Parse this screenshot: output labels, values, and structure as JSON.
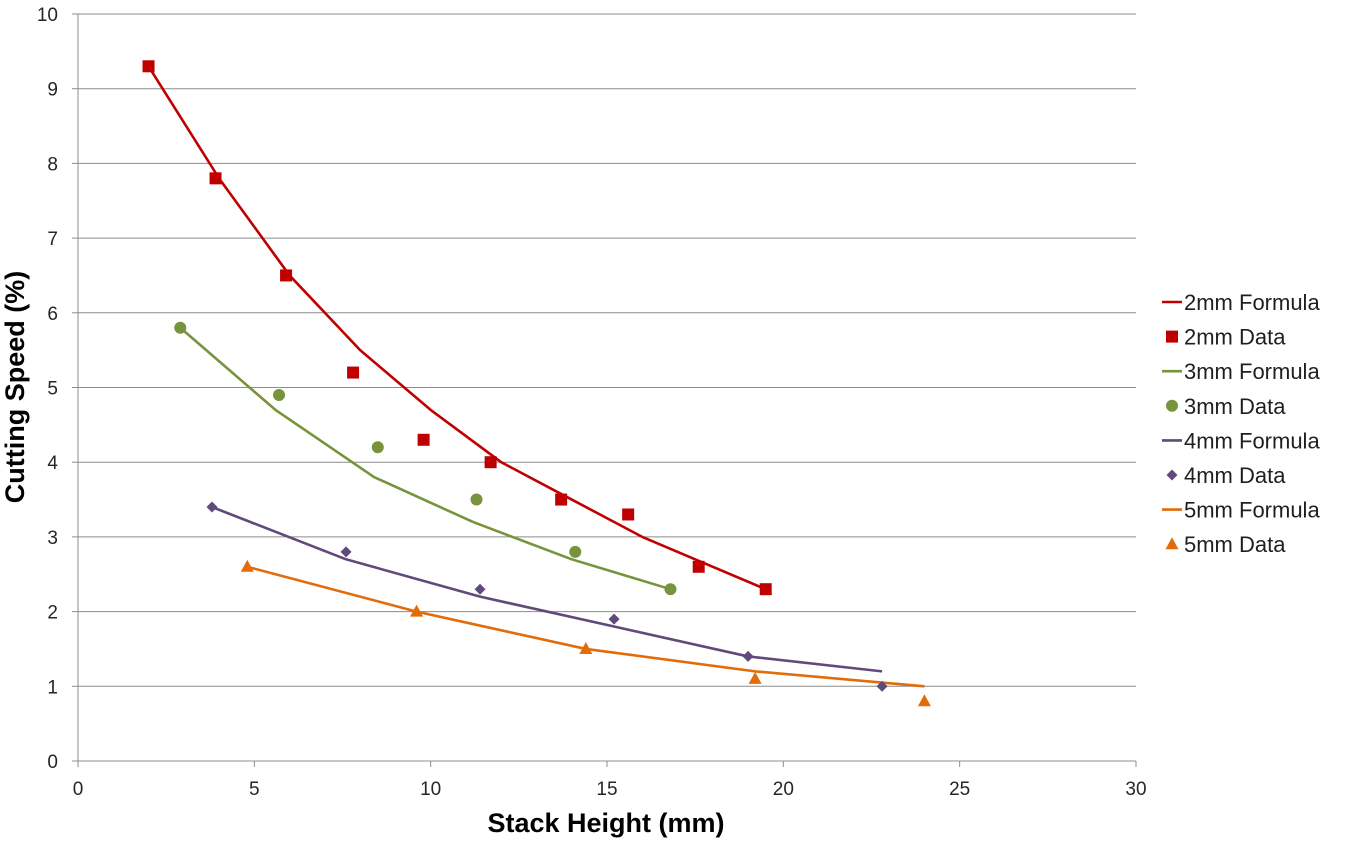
{
  "chart_data": {
    "type": "scatter",
    "xlabel": "Stack Height (mm)",
    "ylabel": "Cutting Speed (%)",
    "xlim": [
      0,
      30
    ],
    "ylim": [
      0,
      10
    ],
    "x_ticks": [
      "0",
      "5",
      "10",
      "15",
      "20",
      "25",
      "30"
    ],
    "y_ticks": [
      "0",
      "1",
      "2",
      "3",
      "4",
      "5",
      "6",
      "7",
      "8",
      "9",
      "10"
    ],
    "grid": "horizontal",
    "legend_position": "right",
    "series": [
      {
        "name": "2mm Formula",
        "kind": "line",
        "color": "#C00000",
        "x": [
          2,
          4,
          6,
          8,
          10,
          12,
          14,
          16,
          18,
          19.5
        ],
        "y": [
          9.3,
          7.8,
          6.5,
          5.5,
          4.7,
          4.0,
          3.5,
          3.0,
          2.6,
          2.3
        ]
      },
      {
        "name": "2mm Data",
        "kind": "marker",
        "marker": "square",
        "color": "#C00000",
        "x": [
          2,
          3.9,
          5.9,
          7.8,
          9.8,
          11.7,
          13.7,
          15.6,
          17.6,
          19.5
        ],
        "y": [
          9.3,
          7.8,
          6.5,
          5.2,
          4.3,
          4.0,
          3.5,
          3.3,
          2.6,
          2.3
        ]
      },
      {
        "name": "3mm Formula",
        "kind": "line",
        "color": "#77933C",
        "x": [
          2.9,
          5.6,
          8.4,
          11.2,
          14.0,
          16.8
        ],
        "y": [
          5.8,
          4.7,
          3.8,
          3.2,
          2.7,
          2.3
        ]
      },
      {
        "name": "3mm Data",
        "kind": "marker",
        "marker": "circle",
        "color": "#77933C",
        "x": [
          2.9,
          5.7,
          8.5,
          11.3,
          14.1,
          16.8
        ],
        "y": [
          5.8,
          4.9,
          4.2,
          3.5,
          2.8,
          2.3
        ]
      },
      {
        "name": "4mm Formula",
        "kind": "line",
        "color": "#604A7B",
        "x": [
          3.8,
          7.6,
          11.4,
          15.2,
          19.0,
          22.8
        ],
        "y": [
          3.4,
          2.7,
          2.2,
          1.8,
          1.4,
          1.2
        ]
      },
      {
        "name": "4mm Data",
        "kind": "marker",
        "marker": "diamond",
        "color": "#604A7B",
        "x": [
          3.8,
          7.6,
          11.4,
          15.2,
          19.0,
          22.8
        ],
        "y": [
          3.4,
          2.8,
          2.3,
          1.9,
          1.4,
          1.0
        ]
      },
      {
        "name": "5mm Formula",
        "kind": "line",
        "color": "#E36C09",
        "x": [
          4.8,
          9.6,
          14.4,
          19.2,
          24.0
        ],
        "y": [
          2.6,
          2.0,
          1.5,
          1.2,
          1.0
        ]
      },
      {
        "name": "5mm Data",
        "kind": "marker",
        "marker": "triangle",
        "color": "#E36C09",
        "x": [
          4.8,
          9.6,
          14.4,
          19.2,
          24.0
        ],
        "y": [
          2.6,
          2.0,
          1.5,
          1.1,
          0.8
        ]
      }
    ]
  }
}
